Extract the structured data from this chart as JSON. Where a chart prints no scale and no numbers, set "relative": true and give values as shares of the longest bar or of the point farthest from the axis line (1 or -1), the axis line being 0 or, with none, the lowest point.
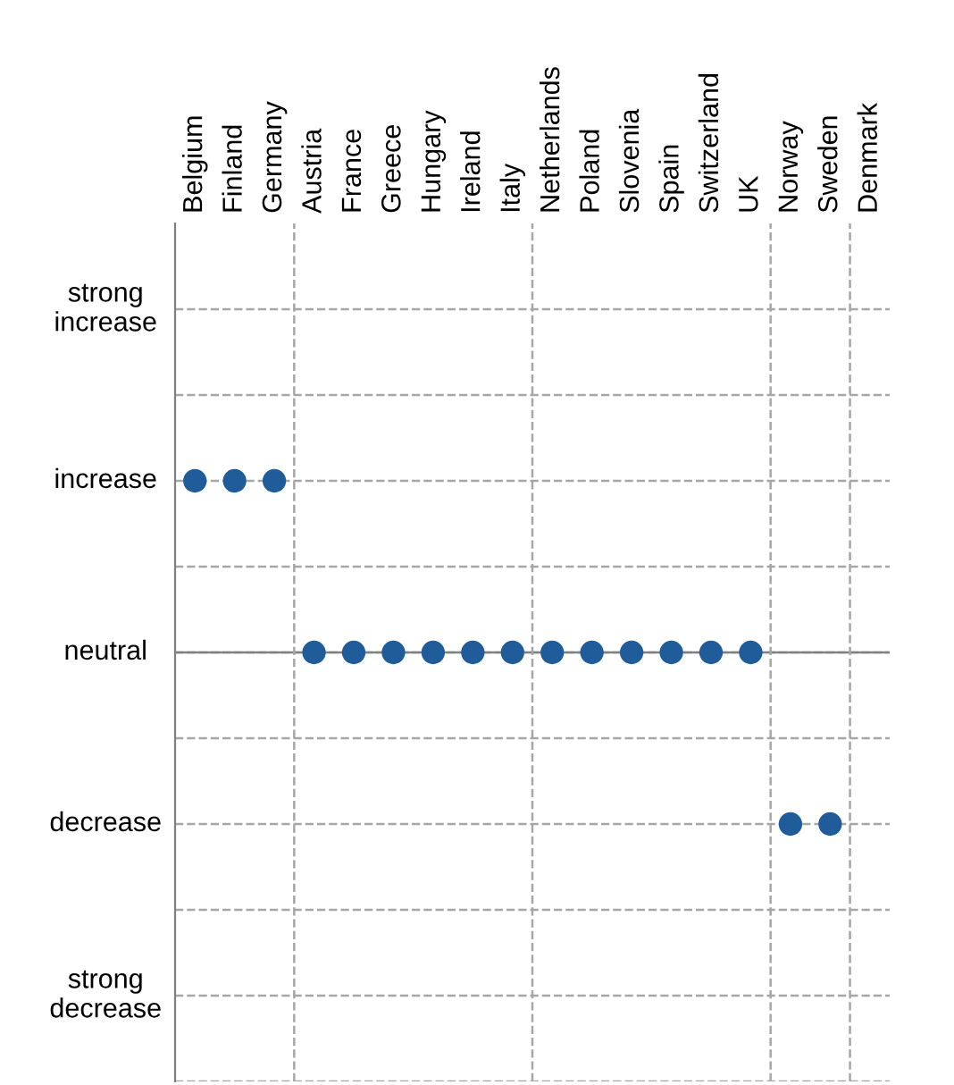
{
  "chart_data": {
    "type": "scatter",
    "relative": true,
    "categories": [
      "Belgium",
      "Finland",
      "Germany",
      "Austria",
      "France",
      "Greece",
      "Hungary",
      "Ireland",
      "Italy",
      "Netherlands",
      "Poland",
      "Slovenia",
      "Spain",
      "Switzerland",
      "UK",
      "Norway",
      "Sweden",
      "Denmark"
    ],
    "annotations": [
      "strong\nincrease",
      "increase",
      "neutral",
      "decrease",
      "strong\ndecrease"
    ],
    "series": [
      {
        "color": "#1f5c99",
        "values": [
          1,
          1,
          1,
          0,
          0,
          0,
          0,
          0,
          0,
          0,
          0,
          0,
          0,
          0,
          0,
          -1,
          -1,
          null
        ]
      }
    ],
    "grid": true,
    "marker": "circle",
    "ref_lines": [
      {
        "axis": "y",
        "value": 0,
        "color": "#808080",
        "line_style": "solid"
      }
    ]
  }
}
